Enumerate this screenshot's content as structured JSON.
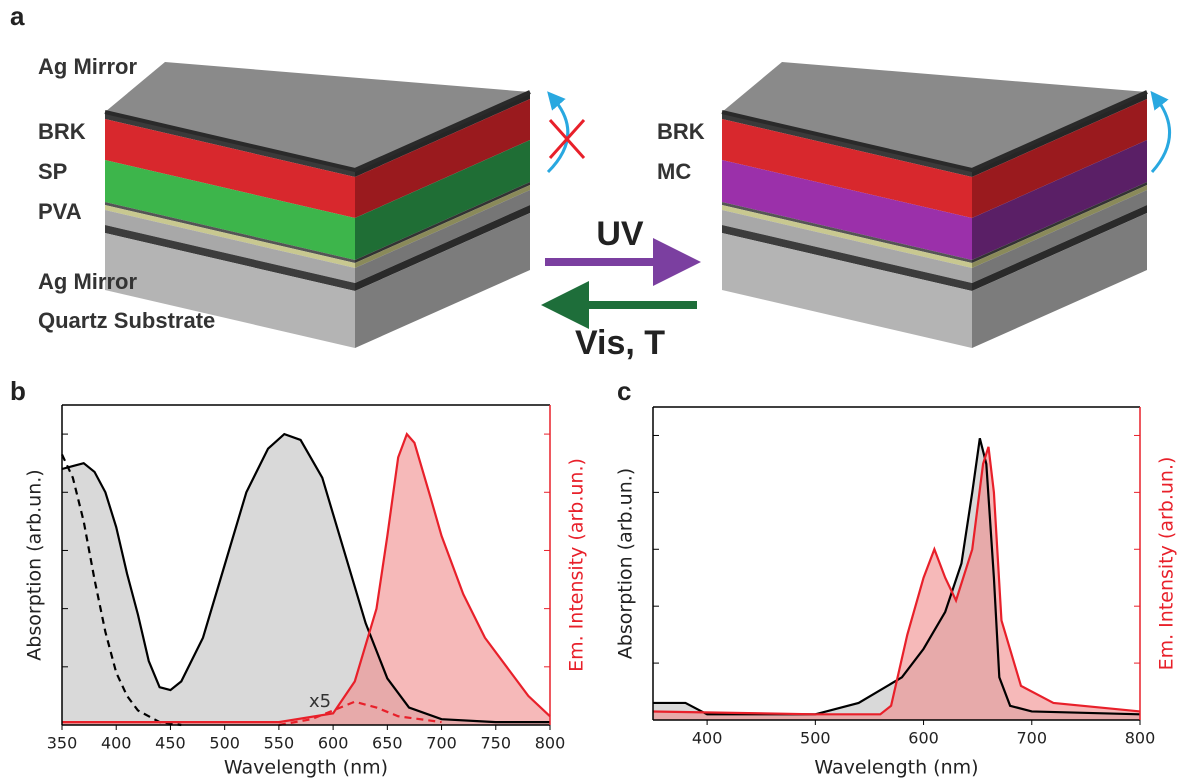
{
  "panel_a": {
    "label": "a",
    "left_labels": [
      "Ag Mirror",
      "BRK",
      "SP",
      "PVA",
      "Ag Mirror",
      "Quartz Substrate"
    ],
    "right_labels": [
      "BRK",
      "MC"
    ],
    "forward": "UV",
    "backward": "Vis, T"
  },
  "chart_data": [
    {
      "type": "line",
      "panel_label": "b",
      "xlabel": "Wavelength (nm)",
      "ylabel": "Absorption (arb.un.)",
      "y2label": "Em. Intensity (arb.un.)",
      "xlim": [
        350,
        800
      ],
      "xticks": [
        350,
        400,
        450,
        500,
        550,
        600,
        650,
        700,
        750,
        800
      ],
      "ylim": [
        0,
        1.1
      ],
      "yticks": [
        0.2,
        0.4,
        0.6,
        0.8,
        1.0
      ],
      "y2lim": [
        0,
        1.1
      ],
      "y2ticks": [
        0.2,
        0.4,
        0.6,
        0.8,
        1.0
      ],
      "y2color": "#e8202a",
      "annotation": "x5",
      "series": [
        {
          "color": "#000000",
          "fill": "#d9d9d9",
          "axis": "y",
          "x": [
            350,
            360,
            370,
            380,
            390,
            400,
            410,
            420,
            430,
            440,
            450,
            460,
            480,
            500,
            520,
            540,
            555,
            570,
            590,
            610,
            630,
            650,
            670,
            700,
            750,
            800
          ],
          "values": [
            0.88,
            0.89,
            0.9,
            0.87,
            0.8,
            0.68,
            0.52,
            0.38,
            0.22,
            0.13,
            0.12,
            0.15,
            0.3,
            0.55,
            0.8,
            0.95,
            1.0,
            0.98,
            0.85,
            0.6,
            0.35,
            0.16,
            0.06,
            0.02,
            0.01,
            0.01
          ]
        },
        {
          "color": "#000000",
          "dashed": true,
          "axis": "y",
          "x": [
            350,
            360,
            370,
            380,
            390,
            400,
            410,
            420,
            440,
            460
          ],
          "values": [
            0.93,
            0.85,
            0.7,
            0.5,
            0.32,
            0.18,
            0.1,
            0.05,
            0.01,
            0
          ]
        },
        {
          "color": "#e8202a",
          "fill": "#f08a8a",
          "axis": "y2",
          "x": [
            350,
            450,
            550,
            600,
            620,
            640,
            650,
            660,
            668,
            675,
            690,
            700,
            720,
            740,
            760,
            780,
            800
          ],
          "values": [
            0.01,
            0.01,
            0.01,
            0.04,
            0.15,
            0.4,
            0.65,
            0.92,
            1.0,
            0.97,
            0.78,
            0.65,
            0.45,
            0.3,
            0.2,
            0.1,
            0.03
          ]
        },
        {
          "color": "#e8202a",
          "dashed": true,
          "axis": "y2",
          "x": [
            550,
            580,
            600,
            620,
            640,
            660,
            700
          ],
          "values": [
            0,
            0.02,
            0.05,
            0.08,
            0.06,
            0.03,
            0.01
          ]
        }
      ]
    },
    {
      "type": "line",
      "panel_label": "c",
      "xlabel": "Wavelength (nm)",
      "ylabel": "Absorption (arb.un.)",
      "y2label": "Em. Intensity (arb.un.)",
      "xlim": [
        350,
        800
      ],
      "xticks": [
        400,
        500,
        600,
        700,
        800
      ],
      "ylim": [
        0,
        1.1
      ],
      "yticks": [
        0.2,
        0.4,
        0.6,
        0.8,
        1.0
      ],
      "y2lim": [
        0,
        1.1
      ],
      "y2ticks": [
        0.2,
        0.4,
        0.6,
        0.8,
        1.0
      ],
      "y2color": "#e8202a",
      "series": [
        {
          "color": "#000000",
          "fill": "#d9d9d9",
          "axis": "y",
          "x": [
            350,
            380,
            400,
            450,
            500,
            540,
            580,
            600,
            620,
            635,
            645,
            652,
            658,
            665,
            670,
            680,
            700,
            800
          ],
          "values": [
            0.06,
            0.06,
            0.02,
            0.02,
            0.02,
            0.06,
            0.15,
            0.25,
            0.38,
            0.55,
            0.8,
            0.99,
            0.9,
            0.5,
            0.15,
            0.05,
            0.03,
            0.02
          ]
        },
        {
          "color": "#e8202a",
          "fill": "#f08a8a",
          "axis": "y2",
          "x": [
            350,
            500,
            560,
            570,
            585,
            600,
            610,
            620,
            630,
            645,
            655,
            660,
            665,
            672,
            690,
            720,
            800
          ],
          "values": [
            0.03,
            0.02,
            0.02,
            0.05,
            0.3,
            0.5,
            0.6,
            0.5,
            0.42,
            0.6,
            0.9,
            0.96,
            0.8,
            0.35,
            0.12,
            0.06,
            0.03
          ]
        }
      ]
    }
  ]
}
